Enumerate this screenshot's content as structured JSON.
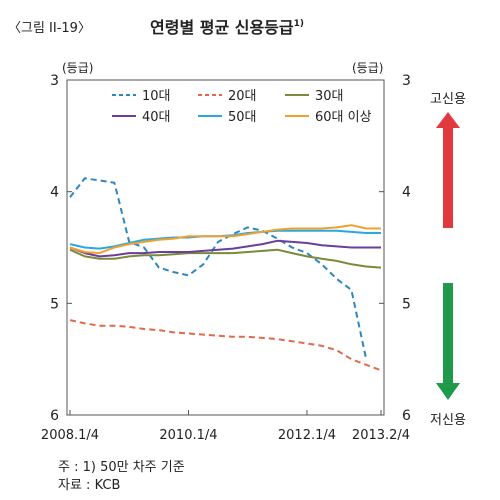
{
  "figure": {
    "label": "〈그림 II-19〉",
    "title": "연령별 평균 신용등급",
    "title_footnote": "1)"
  },
  "notes": {
    "note1": "주 : 1) 50만 차주 기준",
    "source": "자료 : KCB"
  },
  "arrows": {
    "up_label": "고신용",
    "down_label": "저신용",
    "up_color": "#e03a3e",
    "down_color": "#1f9a4a"
  },
  "chart_data": {
    "type": "line",
    "title": "연령별 평균 신용등급",
    "ylabel_left": "(등급)",
    "ylabel_right": "(등급)",
    "y_inverted": true,
    "ylim": [
      3,
      6
    ],
    "yticks": [
      "3",
      "4",
      "5",
      "6"
    ],
    "x": [
      "2008.1/4",
      "2008.2/4",
      "2008.3/4",
      "2008.4/4",
      "2009.1/4",
      "2009.2/4",
      "2009.3/4",
      "2009.4/4",
      "2010.1/4",
      "2010.2/4",
      "2010.3/4",
      "2010.4/4",
      "2011.1/4",
      "2011.2/4",
      "2011.3/4",
      "2011.4/4",
      "2012.1/4",
      "2012.2/4",
      "2012.3/4",
      "2012.4/4",
      "2013.1/4",
      "2013.2/4"
    ],
    "xtick_labels": [
      {
        "index": 0,
        "label": "2008.1/4"
      },
      {
        "index": 8,
        "label": "2010.1/4"
      },
      {
        "index": 16,
        "label": "2012.1/4"
      },
      {
        "index": 21,
        "label": "2013.2/4"
      }
    ],
    "grid": false,
    "legend_position": "top",
    "series": [
      {
        "name": "10대",
        "color": "#2e86c1",
        "dash": "6,4",
        "values": [
          4.05,
          3.88,
          3.9,
          3.92,
          4.45,
          4.5,
          4.68,
          4.72,
          4.75,
          4.65,
          4.45,
          4.38,
          4.32,
          4.35,
          4.42,
          4.5,
          4.55,
          4.65,
          4.78,
          4.88,
          5.5,
          null
        ]
      },
      {
        "name": "20대",
        "color": "#e06a4a",
        "dash": "6,4",
        "values": [
          5.15,
          5.18,
          5.2,
          5.2,
          5.21,
          5.23,
          5.24,
          5.26,
          5.27,
          5.28,
          5.29,
          5.3,
          5.3,
          5.31,
          5.32,
          5.34,
          5.36,
          5.38,
          5.42,
          5.5,
          5.55,
          5.6
        ]
      },
      {
        "name": "30대",
        "color": "#7a8a3a",
        "dash": "",
        "values": [
          4.52,
          4.58,
          4.6,
          4.6,
          4.58,
          4.57,
          4.57,
          4.56,
          4.55,
          4.55,
          4.55,
          4.55,
          4.54,
          4.53,
          4.52,
          4.55,
          4.58,
          4.6,
          4.62,
          4.65,
          4.67,
          4.68
        ]
      },
      {
        "name": "40대",
        "color": "#6a3e9a",
        "dash": "",
        "values": [
          4.5,
          4.55,
          4.58,
          4.57,
          4.55,
          4.55,
          4.54,
          4.54,
          4.54,
          4.53,
          4.52,
          4.51,
          4.49,
          4.47,
          4.44,
          4.45,
          4.46,
          4.48,
          4.49,
          4.5,
          4.5,
          4.5
        ]
      },
      {
        "name": "50대",
        "color": "#2aa8e0",
        "dash": "",
        "values": [
          4.47,
          4.5,
          4.51,
          4.49,
          4.46,
          4.43,
          4.42,
          4.41,
          4.41,
          4.4,
          4.4,
          4.39,
          4.37,
          4.36,
          4.35,
          4.35,
          4.35,
          4.35,
          4.35,
          4.36,
          4.37,
          4.37
        ]
      },
      {
        "name": "60대 이상",
        "color": "#f0a030",
        "dash": "",
        "values": [
          4.5,
          4.54,
          4.55,
          4.5,
          4.47,
          4.45,
          4.43,
          4.42,
          4.4,
          4.4,
          4.4,
          4.4,
          4.38,
          4.36,
          4.34,
          4.33,
          4.33,
          4.33,
          4.32,
          4.3,
          4.33,
          4.33
        ]
      }
    ]
  }
}
